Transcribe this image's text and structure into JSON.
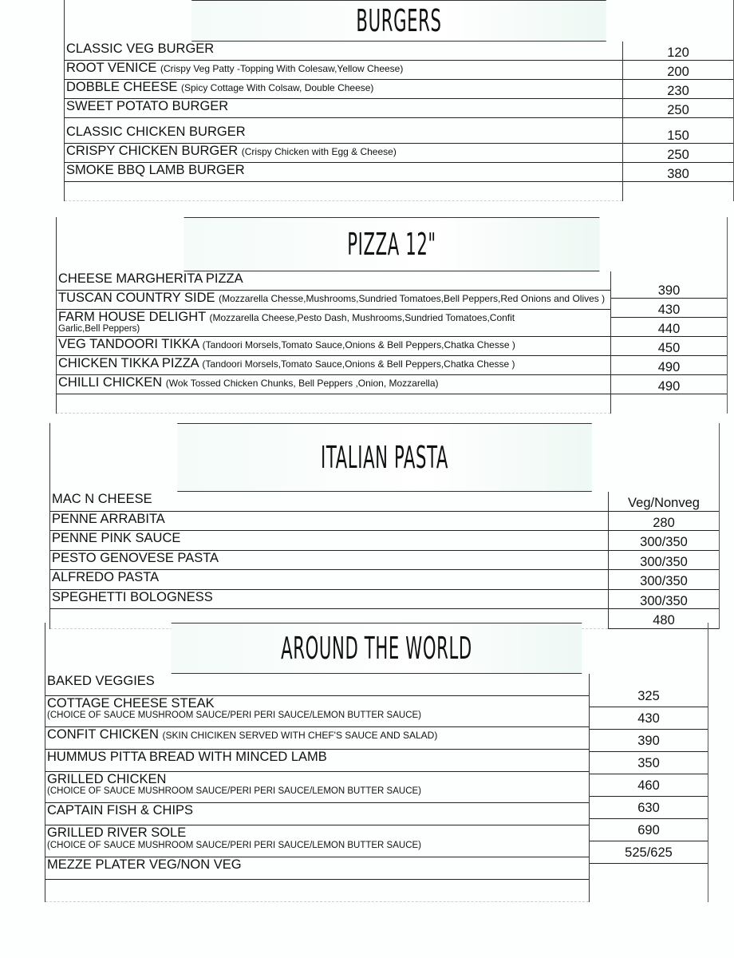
{
  "sections": [
    {
      "title": "BURGERS",
      "items": [
        {
          "name": "CLASSIC VEG BURGER",
          "desc": ""
        },
        {
          "name": "ROOT VENICE",
          "desc": "(Crispy Veg Patty -Topping With Colesaw,Yellow Cheese)"
        },
        {
          "name": "DOBBLE CHEESE",
          "desc": "(Spicy Cottage With Colsaw, Double Cheese)"
        },
        {
          "name": "SWEET POTATO BURGER",
          "desc": ""
        },
        {
          "name": "CLASSIC CHICKEN BURGER",
          "desc": ""
        },
        {
          "name": "CRISPY CHICKEN BURGER",
          "desc": "(Crispy Chicken with Egg & Cheese)"
        },
        {
          "name": "SMOKE BBQ LAMB BURGER",
          "desc": ""
        }
      ],
      "prices": [
        "120",
        "200",
        "230",
        "250",
        "150",
        "250",
        "380"
      ]
    },
    {
      "title": "PIZZA 12\"",
      "items": [
        {
          "name": "CHEESE MARGHERITA PIZZA",
          "desc": ""
        },
        {
          "name": "TUSCAN COUNTRY SIDE",
          "desc": "(Mozzarella Chesse,Mushrooms,Sundried Tomatoes,Bell Peppers,Red Onions and Olives )"
        },
        {
          "name": "FARM HOUSE DELIGHT",
          "desc": "(Mozzarella Cheese,Pesto Dash, Mushrooms,Sundried Tomatoes,Confit",
          "desc2": "Garlic,Bell Peppers)"
        },
        {
          "name": "VEG TANDOORI TIKKA",
          "desc": "(Tandoori Morsels,Tomato Sauce,Onions & Bell Peppers,Chatka Chesse )"
        },
        {
          "name": "CHICKEN TIKKA PIZZA",
          "desc": "(Tandoori Morsels,Tomato Sauce,Onions & Bell Peppers,Chatka Chesse )"
        },
        {
          "name": "CHILLI CHICKEN",
          "desc": "(Wok Tossed Chicken Chunks, Bell Peppers ,Onion, Mozzarella)"
        }
      ],
      "prices": [
        "390",
        "430",
        "440",
        "450",
        "490",
        "490"
      ]
    },
    {
      "title": "ITALIAN PASTA",
      "items": [
        {
          "name": "MAC N CHEESE",
          "desc": ""
        },
        {
          "name": "PENNE ARRABITA",
          "desc": ""
        },
        {
          "name": "PENNE PINK SAUCE",
          "desc": ""
        },
        {
          "name": "PESTO GENOVESE PASTA",
          "desc": ""
        },
        {
          "name": "ALFREDO PASTA",
          "desc": ""
        },
        {
          "name": "SPEGHETTI BOLOGNESS",
          "desc": ""
        }
      ],
      "prices": [
        "Veg/Nonveg",
        "280",
        "300/350",
        "300/350",
        "300/350",
        "300/350",
        "480"
      ]
    },
    {
      "title": "AROUND THE WORLD",
      "items": [
        {
          "name": "BAKED VEGGIES",
          "desc": ""
        },
        {
          "name": "COTTAGE CHEESE STEAK",
          "desc2": "(CHOICE OF SAUCE MUSHROOM SAUCE/PERI PERI SAUCE/LEMON BUTTER SAUCE)"
        },
        {
          "name": "CONFIT CHICKEN",
          "desc": "(SKIN CHICIKEN SERVED WITH CHEF'S SAUCE AND SALAD)"
        },
        {
          "name": "HUMMUS PITTA BREAD WITH MINCED LAMB",
          "desc": ""
        },
        {
          "name": "GRILLED CHICKEN",
          "desc2": "(CHOICE OF SAUCE MUSHROOM SAUCE/PERI PERI SAUCE/LEMON BUTTER SAUCE)"
        },
        {
          "name": "CAPTAIN FISH & CHIPS",
          "desc": ""
        },
        {
          "name": "GRILLED RIVER SOLE",
          "desc2": "(CHOICE OF SAUCE MUSHROOM SAUCE/PERI PERI SAUCE/LEMON BUTTER SAUCE)"
        },
        {
          "name": "MEZZE PLATER VEG/NON VEG",
          "desc": ""
        }
      ],
      "prices": [
        "325",
        "430",
        "390",
        "350",
        "460",
        "630",
        "690",
        "525/625"
      ]
    }
  ]
}
